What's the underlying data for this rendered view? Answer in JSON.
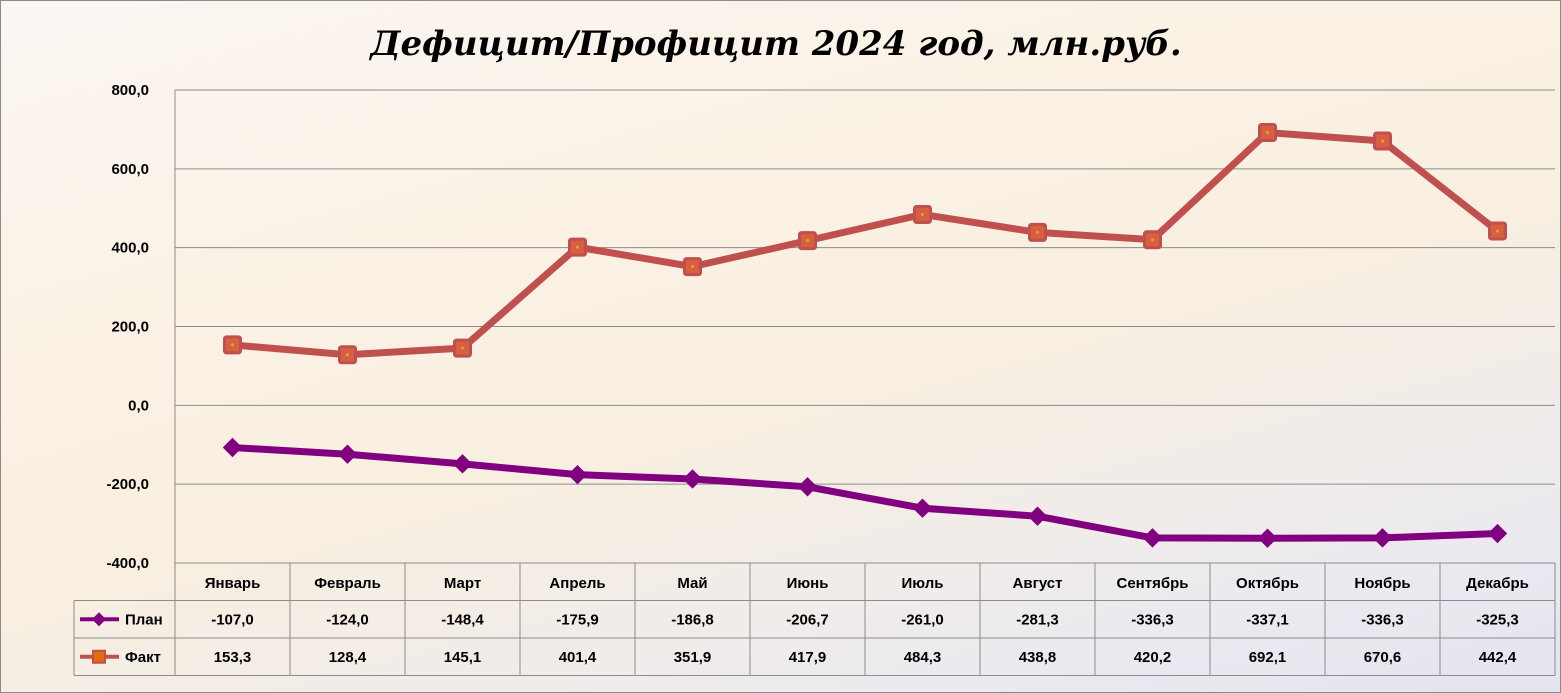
{
  "chart_data": {
    "type": "line",
    "title": "Дефицит/Профицит 2024 год, млн.руб.",
    "categories": [
      "Январь",
      "Февраль",
      "Март",
      "Апрель",
      "Май",
      "Июнь",
      "Июль",
      "Август",
      "Сентябрь",
      "Октябрь",
      "Ноябрь",
      "Декабрь"
    ],
    "series": [
      {
        "name": "План",
        "color": "#800080",
        "marker": "diamond",
        "values": [
          -107.0,
          -124.0,
          -148.4,
          -175.9,
          -186.8,
          -206.7,
          -261.0,
          -281.3,
          -336.3,
          -337.1,
          -336.3,
          -325.3
        ],
        "labels": [
          "-107,0",
          "-124,0",
          "-148,4",
          "-175,9",
          "-186,8",
          "-206,7",
          "-261,0",
          "-281,3",
          "-336,3",
          "-337,1",
          "-336,3",
          "-325,3"
        ]
      },
      {
        "name": "Факт",
        "color": "#c0504d",
        "marker": "square",
        "values": [
          153.3,
          128.4,
          145.1,
          401.4,
          351.9,
          417.9,
          484.3,
          438.8,
          420.2,
          692.1,
          670.6,
          442.4
        ],
        "labels": [
          "153,3",
          "128,4",
          "145,1",
          "401,4",
          "351,9",
          "417,9",
          "484,3",
          "438,8",
          "420,2",
          "692,1",
          "670,6",
          "442,4"
        ]
      }
    ],
    "ylim": [
      -400,
      800
    ],
    "yticks": [
      800,
      600,
      400,
      200,
      0,
      -200,
      -400
    ],
    "ytick_labels": [
      "800,0",
      "600,0",
      "400,0",
      "200,0",
      "0,0",
      "-200,0",
      "-400,0"
    ],
    "grid": true,
    "legend": "data-table"
  }
}
